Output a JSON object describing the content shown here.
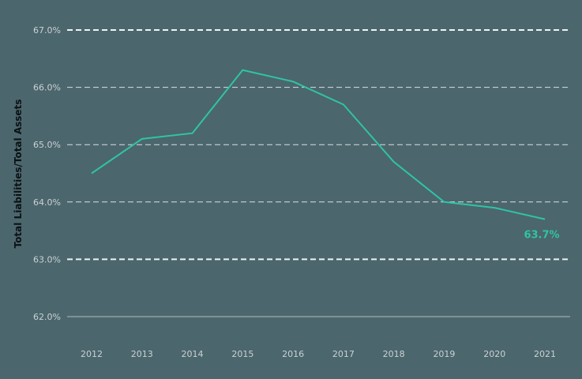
{
  "chart_data": {
    "type": "line",
    "title": "",
    "xlabel": "",
    "ylabel": "Total Liabilities/Total Assets",
    "x": [
      "2012",
      "2013",
      "2014",
      "2015",
      "2016",
      "2017",
      "2018",
      "2019",
      "2020",
      "2021"
    ],
    "series": [
      {
        "name": "Total Liabilities/Total Assets",
        "values": [
          64.5,
          65.1,
          65.2,
          66.3,
          66.1,
          65.7,
          64.7,
          64.0,
          63.9,
          63.7
        ],
        "color": "#2ec4a6"
      }
    ],
    "yticks": [
      "67.0%",
      "66.0%",
      "65.0%",
      "64.0%",
      "63.0%",
      "62.0%"
    ],
    "ylim": [
      62.0,
      67.0
    ],
    "grid": true,
    "legend": "none",
    "annotations": [
      {
        "text": "63.7%",
        "x": "2021",
        "y": 63.7
      }
    ]
  },
  "colors": {
    "background": "#4c666d",
    "line": "#2ec4a6",
    "grid": "#e6ecee",
    "tick_text": "#c9d2d4"
  }
}
